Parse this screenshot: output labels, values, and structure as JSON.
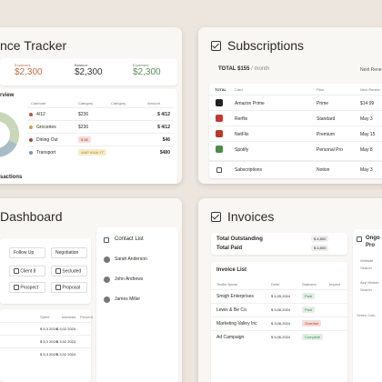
{
  "finance": {
    "title": "nce Tracker",
    "stats": [
      {
        "label": "Expenses",
        "value": "$2,300"
      },
      {
        "label": "Balance",
        "value": "$2,300"
      },
      {
        "label": "Expenses",
        "value": "$2,300"
      }
    ],
    "overview_title": "rview",
    "headers": [
      "Calendar",
      "Category",
      "Category",
      "Amount"
    ],
    "rows": [
      {
        "name": "4/12",
        "cat": "$236",
        "amount": "$ 4/12"
      },
      {
        "name": "Groceries",
        "cat": "$236",
        "amount": "$ 4/12"
      },
      {
        "name": "Dining Out",
        "cat": "$ 88",
        "amount": "$46"
      },
      {
        "name": "Transport",
        "cat": "",
        "amount": "$480"
      }
    ],
    "row_colors": [
      "#b9553a",
      "#c9a24a",
      "#a8493b",
      "#6f9bb5"
    ],
    "badge_text": "WAP ANALYT",
    "footer": "sactions",
    "donut_colors": [
      "#c9d6b8",
      "#a8bcc5",
      "#d9c8a8",
      "#e5e1d9"
    ]
  },
  "subs": {
    "title": "Subscriptions",
    "total_label": "TOTAL",
    "total_value": "$155",
    "total_unit": "/ month",
    "next": "Next Rene",
    "headers": [
      "TOTAL",
      "Card",
      "Plan",
      "Next Renew"
    ],
    "rows": [
      {
        "name": "Amazon Prime",
        "plan": "Prime",
        "date": "$14.99",
        "color": "#222"
      },
      {
        "name": "Rerflix",
        "plan": "Standard",
        "date": "May 3",
        "color": "#c0392b"
      },
      {
        "name": "NetFlix",
        "plan": "Premium",
        "date": "May 15",
        "color": "#b33a2c"
      },
      {
        "name": "Spotify",
        "plan": "Personal Pro",
        "date": "May 8",
        "color": "#4d8c4a"
      }
    ],
    "footer_name": "Sabscriptions",
    "footer_plan": "Notion",
    "footer_date": "May 3"
  },
  "dashboard": {
    "title": "Dashboard",
    "pills": [
      "Follow Up",
      "Negotiation"
    ],
    "items": [
      "Client 8",
      "Secluded",
      "Prospect",
      "Proposal"
    ],
    "contact_title": "Contact List",
    "contacts": [
      "Sarah Anderson",
      "John Andrews",
      "James Miller"
    ],
    "table_headers": [
      "Spent",
      "Interests",
      "Percent"
    ],
    "table_rows": [
      {
        "a": "$ 5,3 2024",
        "b": "$ 3,02 2024"
      },
      {
        "a": "$ 5,3 2024",
        "b": "$ 3,02 2024"
      },
      {
        "a": "$ 5,3 2024",
        "b": "$ 3,02 2024"
      }
    ]
  },
  "invoices": {
    "title": "Invoices",
    "outstanding_label": "Total Outstanding",
    "outstanding_value": "$ 4,800",
    "paid_label": "Total Paid",
    "paid_value": "$ 4,800",
    "list_title": "Invoice  List",
    "headers": [
      "Textile Name",
      "Debit",
      "Statuses",
      "Impact"
    ],
    "rows": [
      {
        "name": "Smigh Enterprises",
        "amt": "$ 4,05,2024",
        "status": "Paid",
        "color": "#3b8a5a"
      },
      {
        "name": "Lewis & Be Co.",
        "amt": "$ 3,06,2024",
        "status": "Paid",
        "color": "#3b8a5a"
      },
      {
        "name": "Marketing Valley Inc",
        "amt": "$ 3,06,2024",
        "status": "Overdue",
        "color": "#b23a2a"
      },
      {
        "name": "Ad Campaign",
        "amt": "$ 5,06,2024",
        "status": "Complete",
        "color": "#3b8a5a"
      }
    ],
    "side_title": "Ongo Pro",
    "side_items": [
      "Website",
      "Search",
      "App Market",
      "Search"
    ],
    "side_label": "Green Colo"
  }
}
